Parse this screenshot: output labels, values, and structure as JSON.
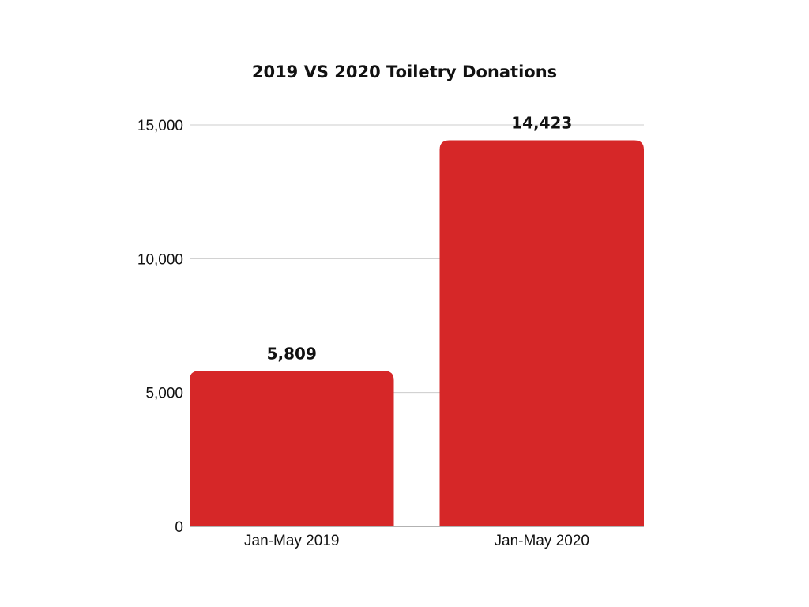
{
  "chart_data": {
    "type": "bar",
    "title": "2019 VS 2020 Toiletry Donations",
    "categories": [
      "Jan-May 2019",
      "Jan-May 2020"
    ],
    "values": [
      5809,
      14423
    ],
    "data_labels": [
      "5,809",
      "14,423"
    ],
    "ylim": [
      0,
      15000
    ],
    "y_ticks": [
      0,
      5000,
      10000,
      15000
    ],
    "y_tick_labels": [
      "0",
      "5,000",
      "10,000",
      "15,000"
    ],
    "xlabel": "",
    "ylabel": "",
    "grid": true,
    "bar_color": "#d62728"
  }
}
